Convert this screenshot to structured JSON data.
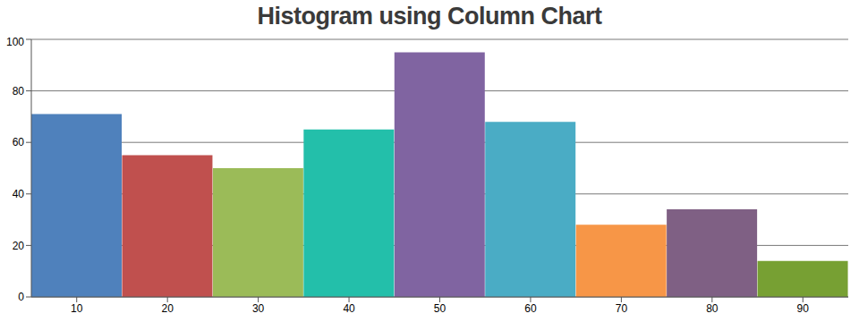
{
  "chart_data": {
    "type": "bar",
    "title": "Histogram using Column Chart",
    "categories": [
      "10",
      "20",
      "30",
      "40",
      "50",
      "60",
      "70",
      "80",
      "90"
    ],
    "values": [
      71,
      55,
      50,
      65,
      95,
      68,
      28,
      34,
      14
    ],
    "colors": [
      "#4f81bc",
      "#c0504e",
      "#9bbb58",
      "#23bfaa",
      "#8064a1",
      "#4aacc5",
      "#f79647",
      "#7f6084",
      "#77a033"
    ],
    "ylim": [
      0,
      100
    ],
    "yticks": [
      0,
      20,
      40,
      60,
      80,
      100
    ],
    "grid": true
  }
}
